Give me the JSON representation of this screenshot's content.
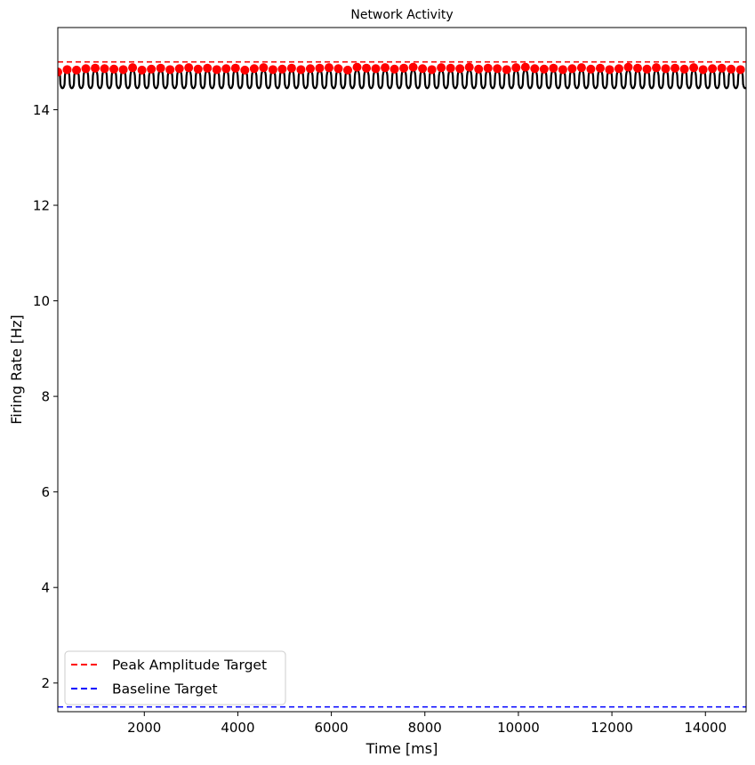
{
  "chart_data": {
    "type": "line",
    "title": "Network Activity",
    "xlabel": "Time [ms]",
    "ylabel": "Firing Rate [Hz]",
    "xlim": [
      150,
      14870
    ],
    "ylim": [
      1.4,
      15.72
    ],
    "xticks": [
      2000,
      4000,
      6000,
      8000,
      10000,
      12000,
      14000
    ],
    "yticks": [
      2,
      4,
      6,
      8,
      10,
      12,
      14
    ],
    "grid": false,
    "legend_position": "lower-left",
    "colors": {
      "activity": "#000000",
      "peaks": "#ff0000",
      "peak_target": "#ff0000",
      "baseline_target": "#0000ff"
    },
    "series": [
      {
        "kind": "oscillation",
        "style": "solid",
        "period_ms": 200,
        "trough_hz": 14.45,
        "crest_hz": 14.83,
        "x_start": 150,
        "x_end": 14870
      },
      {
        "kind": "peaks",
        "style": "markers",
        "x": [
          150,
          350,
          550,
          750,
          950,
          1150,
          1350,
          1550,
          1750,
          1950,
          2150,
          2350,
          2550,
          2750,
          2950,
          3150,
          3350,
          3550,
          3750,
          3950,
          4150,
          4350,
          4550,
          4750,
          4950,
          5150,
          5350,
          5550,
          5750,
          5950,
          6150,
          6350,
          6550,
          6750,
          6950,
          7150,
          7350,
          7550,
          7750,
          7950,
          8150,
          8350,
          8550,
          8750,
          8950,
          9150,
          9350,
          9550,
          9750,
          9950,
          10150,
          10350,
          10550,
          10750,
          10950,
          11150,
          11350,
          11550,
          11750,
          11950,
          12150,
          12350,
          12550,
          12750,
          12950,
          13150,
          13350,
          13550,
          13750,
          13950,
          14150,
          14350,
          14550,
          14750
        ],
        "y": [
          14.79,
          14.84,
          14.83,
          14.86,
          14.87,
          14.86,
          14.85,
          14.84,
          14.88,
          14.83,
          14.85,
          14.87,
          14.84,
          14.86,
          14.88,
          14.85,
          14.87,
          14.84,
          14.86,
          14.87,
          14.83,
          14.86,
          14.88,
          14.84,
          14.85,
          14.87,
          14.84,
          14.86,
          14.87,
          14.88,
          14.86,
          14.83,
          14.89,
          14.87,
          14.86,
          14.88,
          14.85,
          14.87,
          14.89,
          14.86,
          14.84,
          14.88,
          14.87,
          14.86,
          14.89,
          14.85,
          14.87,
          14.86,
          14.84,
          14.88,
          14.89,
          14.86,
          14.85,
          14.87,
          14.84,
          14.86,
          14.88,
          14.85,
          14.87,
          14.84,
          14.86,
          14.89,
          14.87,
          14.85,
          14.88,
          14.86,
          14.87,
          14.85,
          14.88,
          14.84,
          14.86,
          14.87,
          14.85,
          14.84
        ]
      },
      {
        "name": "Peak Amplitude Target",
        "kind": "hline",
        "style": "dashed",
        "y": 15.0
      },
      {
        "name": "Baseline Target",
        "kind": "hline",
        "style": "dashed",
        "y": 1.5
      }
    ]
  }
}
